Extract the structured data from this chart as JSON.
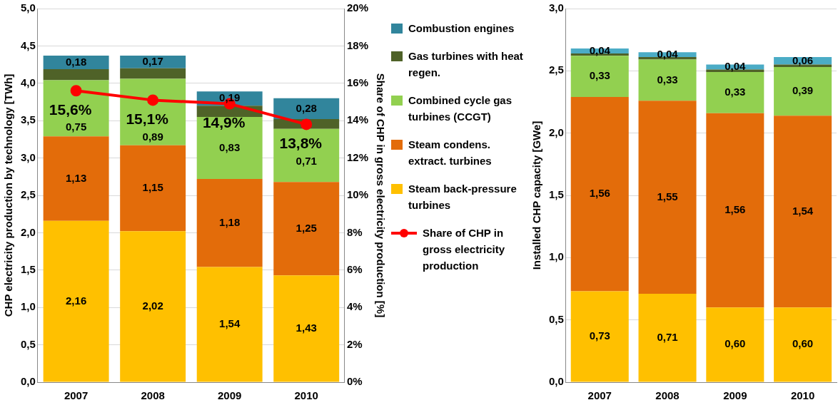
{
  "chart_data": [
    {
      "type": "bar",
      "stacked": true,
      "categories": [
        "2007",
        "2008",
        "2009",
        "2010"
      ],
      "ylabel": "CHP electricity production by technology [TWh]",
      "y2label": "Share of CHP in gross electricity production [%]",
      "ylim": [
        0,
        5
      ],
      "yticks": [
        {
          "value": 0,
          "label": "0,0"
        },
        {
          "value": 0.5,
          "label": "0,5"
        },
        {
          "value": 1,
          "label": "1,0"
        },
        {
          "value": 1.5,
          "label": "1,5"
        },
        {
          "value": 2,
          "label": "2,0"
        },
        {
          "value": 2.5,
          "label": "2,5"
        },
        {
          "value": 3,
          "label": "3,0"
        },
        {
          "value": 3.5,
          "label": "3,5"
        },
        {
          "value": 4,
          "label": "4,0"
        },
        {
          "value": 4.5,
          "label": "4,5"
        },
        {
          "value": 5,
          "label": "5,0"
        }
      ],
      "y2lim": [
        0,
        20
      ],
      "y2ticks": [
        {
          "value": 0,
          "label": "0%"
        },
        {
          "value": 2,
          "label": "2%"
        },
        {
          "value": 4,
          "label": "4%"
        },
        {
          "value": 6,
          "label": "6%"
        },
        {
          "value": 8,
          "label": "8%"
        },
        {
          "value": 10,
          "label": "10%"
        },
        {
          "value": 12,
          "label": "12%"
        },
        {
          "value": 14,
          "label": "14%"
        },
        {
          "value": 16,
          "label": "16%"
        },
        {
          "value": 18,
          "label": "18%"
        },
        {
          "value": 20,
          "label": "20%"
        }
      ],
      "grid": "y",
      "legend": "right",
      "series": [
        {
          "name": "Steam back-pressure turbines",
          "color": "#ffc000",
          "values": [
            2.16,
            2.02,
            1.54,
            1.43
          ],
          "value_labels": [
            "2,16",
            "2,02",
            "1,54",
            "1,43"
          ]
        },
        {
          "name": "Steam condens. extract. turbines",
          "color": "#e36c0a",
          "values": [
            1.13,
            1.15,
            1.18,
            1.25
          ],
          "value_labels": [
            "1,13",
            "1,15",
            "1,18",
            "1,25"
          ]
        },
        {
          "name": "Combined cycle gas turbines (CCGT)",
          "color": "#92d050",
          "values": [
            0.75,
            0.89,
            0.83,
            0.71
          ],
          "value_labels": [
            "0,75",
            "0,89",
            "0,83",
            "0,71"
          ]
        },
        {
          "name": "Gas turbines with heat regen.",
          "color": "#4f6228",
          "values": [
            0.15,
            0.14,
            0.15,
            0.13
          ]
        },
        {
          "name": "Combustion engines",
          "color": "#31859c",
          "values": [
            0.18,
            0.17,
            0.19,
            0.28
          ],
          "value_labels": [
            "0,18",
            "0,17",
            "0,19",
            "0,28"
          ]
        },
        {
          "name": "Share of CHP in gross electricity production",
          "type": "line",
          "axis": "y2",
          "color": "#ff0000",
          "marker": "circle",
          "values": [
            15.6,
            15.1,
            14.9,
            13.8
          ],
          "value_labels": [
            "15,6%",
            "15,1%",
            "14,9%",
            "13,8%"
          ]
        }
      ]
    },
    {
      "type": "bar",
      "stacked": true,
      "categories": [
        "2007",
        "2008",
        "2009",
        "2010"
      ],
      "ylabel": "Installed CHP capacity [GWe]",
      "ylim": [
        0,
        3
      ],
      "yticks": [
        {
          "value": 0,
          "label": "0,0"
        },
        {
          "value": 0.5,
          "label": "0,5"
        },
        {
          "value": 1,
          "label": "1,0"
        },
        {
          "value": 1.5,
          "label": "1,5"
        },
        {
          "value": 2,
          "label": "2,0"
        },
        {
          "value": 2.5,
          "label": "2,5"
        },
        {
          "value": 3,
          "label": "3,0"
        }
      ],
      "grid": "y",
      "series": [
        {
          "color": "#ffc000",
          "values": [
            0.73,
            0.71,
            0.6,
            0.6
          ],
          "value_labels": [
            "0,73",
            "0,71",
            "0,60",
            "0,60"
          ]
        },
        {
          "color": "#e36c0a",
          "values": [
            1.56,
            1.55,
            1.56,
            1.54
          ],
          "value_labels": [
            "1,56",
            "1,55",
            "1,56",
            "1,54"
          ]
        },
        {
          "color": "#92d050",
          "values": [
            0.33,
            0.33,
            0.33,
            0.39
          ],
          "value_labels": [
            "0,33",
            "0,33",
            "0,33",
            "0,39"
          ]
        },
        {
          "color": "#4f6228",
          "values": [
            0.02,
            0.02,
            0.02,
            0.02
          ]
        },
        {
          "color": "#4bacc6",
          "values": [
            0.04,
            0.04,
            0.04,
            0.06
          ],
          "value_labels": [
            "0,04",
            "0,04",
            "0,04",
            "0,06"
          ]
        }
      ]
    }
  ]
}
